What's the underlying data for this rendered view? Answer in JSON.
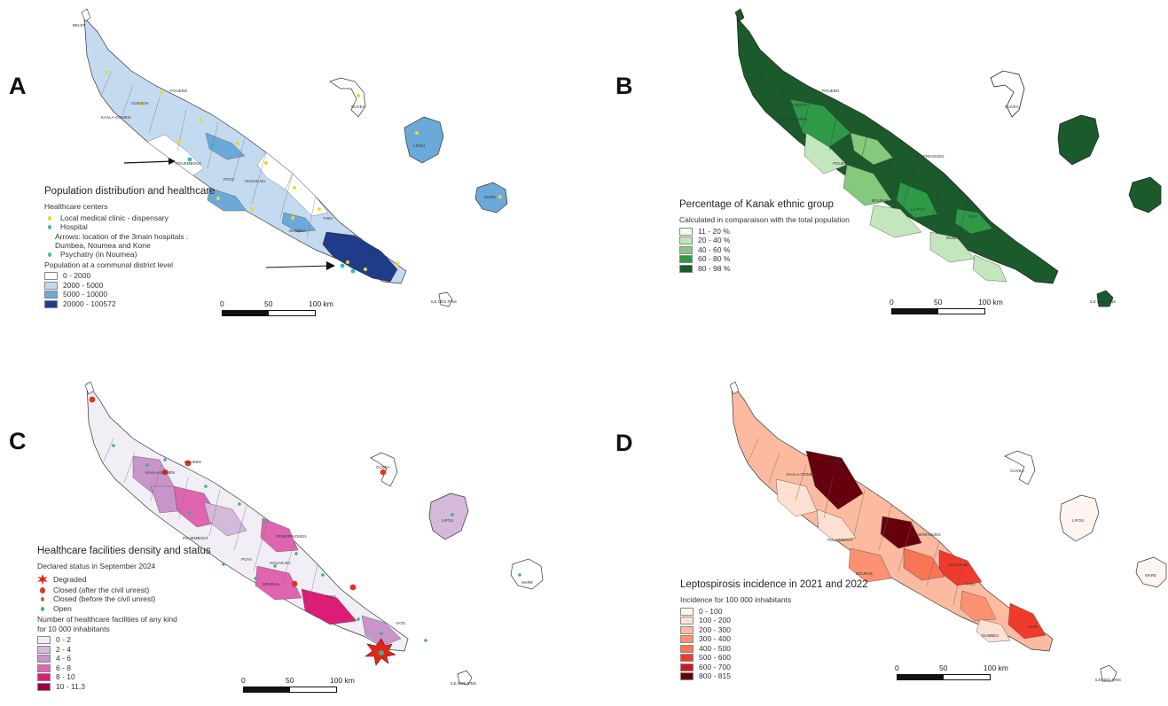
{
  "panels": {
    "a": {
      "letter": "A",
      "legend_title": "Population distribution and healthcare",
      "healthcare_heading": "Healthcare centers",
      "healthcare_items": [
        {
          "label": "Local medical clinic - dispensary",
          "color": "#f2d81a"
        },
        {
          "label": "Hospital",
          "color": "#2fb9c7"
        },
        {
          "label": "Psychatry (in Noumea)",
          "color": "#2fb9c7"
        }
      ],
      "arrow_note": "Arrows: location of the 3main hospitals :",
      "arrow_note_2": "Dumbea, Noumea and Kone",
      "population_heading": "Population at a communal district level",
      "classes": [
        {
          "label": "0 - 2000",
          "color": "#ffffff"
        },
        {
          "label": "2000 - 5000",
          "color": "#c3daf0"
        },
        {
          "label": "5000 - 10000",
          "color": "#6aa9d8"
        },
        {
          "label": "20000 - 100572",
          "color": "#1f3c8a"
        }
      ],
      "scale": {
        "start": "0",
        "mid": "50",
        "end": "100 km"
      },
      "place_labels": [
        "POUEBO",
        "OUEGOA",
        "KAALA-GOMEN",
        "POUEMBOUT",
        "HOUAILOU",
        "POYA",
        "THIO",
        "DUMBEA",
        "YATE",
        "OUVEA",
        "LIFOU",
        "MARE",
        "ILE DES PINS",
        "BELEP"
      ]
    },
    "b": {
      "letter": "B",
      "legend_title": "Percentage of Kanak ethnic group",
      "subtitle": "Calculated in comparaison with the total population",
      "classes": [
        {
          "label": "11 - 20 %",
          "color": "#f4fbf1"
        },
        {
          "label": "20 - 40 %",
          "color": "#c4e6bd"
        },
        {
          "label": "40 - 60 %",
          "color": "#84c97c"
        },
        {
          "label": "60 - 80 %",
          "color": "#2e9a48"
        },
        {
          "label": "80 - 98 %",
          "color": "#1a5a2b"
        }
      ],
      "scale": {
        "start": "0",
        "mid": "50",
        "end": "100 km"
      },
      "place_labels": [
        "POUEBO",
        "OUEGOA",
        "KAALA-GOMEN",
        "POUEMBOUT",
        "PONERIHOUEN",
        "BOURAIL",
        "LA FOA",
        "THIO",
        "DUMBEA",
        "OUVEA",
        "ILE DES PINS"
      ]
    },
    "c": {
      "letter": "C",
      "legend_title": "Healthcare facilities density and status",
      "status_heading": "Declared status in September 2024",
      "status_items": [
        {
          "label": "Degraded",
          "color": "#e0261b",
          "icon": "burst-icon"
        },
        {
          "label": "Closed (after the civil unrest)",
          "color": "#e03524",
          "icon": "large-dot-icon"
        },
        {
          "label": "Closed (before the civil unrest)",
          "color": "#b06a2a",
          "icon": "small-dot-icon"
        },
        {
          "label": "Open",
          "color": "#3bb08a",
          "icon": "small-dot-icon"
        }
      ],
      "density_heading": "Number of healthcare facilities of any kind",
      "density_heading_2": "for 10 000 inhabitants",
      "classes": [
        {
          "label": "0 - 2",
          "color": "#f1eef6"
        },
        {
          "label": "2 - 4",
          "color": "#d4b9da"
        },
        {
          "label": "4 - 6",
          "color": "#c994c7"
        },
        {
          "label": "6 - 8",
          "color": "#df65b0"
        },
        {
          "label": "8 - 10",
          "color": "#dd1c77"
        },
        {
          "label": "10 - 11,3",
          "color": "#980043"
        }
      ],
      "scale": {
        "start": "0",
        "mid": "50",
        "end": "100 km"
      },
      "place_labels": [
        "POUEBO",
        "KAALA-GOMEN",
        "POUEMBOUT",
        "PONERIHOUEN",
        "HOUAILOU",
        "POYA",
        "BOURAIL",
        "THIO",
        "YATE",
        "OUVEA",
        "LIFOU",
        "MARE",
        "ILE DES PINS"
      ]
    },
    "d": {
      "letter": "D",
      "legend_title": "Leptospirosis incidence in 2021 and 2022",
      "subtitle": "Incidence for 100 000 inhabitants",
      "classes": [
        {
          "label": "0 - 100",
          "color": "#fff5f0"
        },
        {
          "label": "100 - 200",
          "color": "#fde0d2"
        },
        {
          "label": "200 - 300",
          "color": "#fcbba1"
        },
        {
          "label": "300 - 400",
          "color": "#fc9272"
        },
        {
          "label": "400 - 500",
          "color": "#f77656"
        },
        {
          "label": "500 - 600",
          "color": "#ef3b2c"
        },
        {
          "label": "600 - 700",
          "color": "#cb181d"
        },
        {
          "label": "800 - 815",
          "color": "#67000d"
        }
      ],
      "scale": {
        "start": "0",
        "mid": "50",
        "end": "100 km"
      },
      "place_labels": [
        "POUEBO",
        "KAALA-GOMEN",
        "POUEMBOUT",
        "PONERIHOUEN",
        "HOUAILOU",
        "BOURAIL",
        "THIO",
        "YATE",
        "DUMBEA",
        "OUVEA",
        "LIFOU",
        "MARE",
        "ILE DES PINS"
      ]
    }
  }
}
